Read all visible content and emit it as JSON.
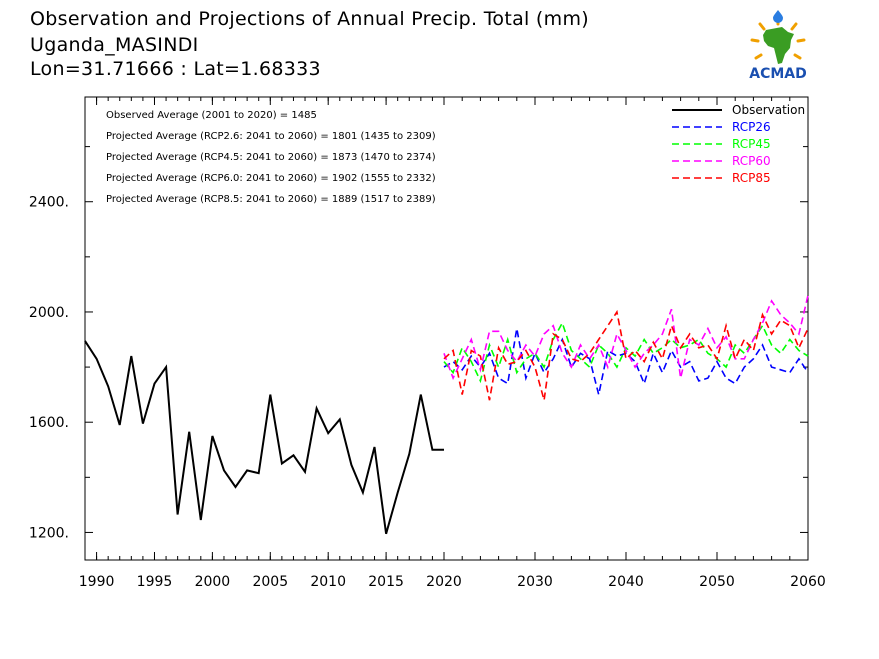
{
  "header": {
    "title": "Observation and Projections of Annual Precip. Total (mm)",
    "location": "Uganda_MASINDI",
    "coords": "Lon=31.71666 : Lat=1.68333"
  },
  "logo": {
    "text": "ACMAD",
    "colors": {
      "africa": "#3a9d23",
      "rays": "#f0a000",
      "text": "#1a4fb0"
    }
  },
  "annotations": [
    "Observed Average (2001 to 2020) = 1485",
    "Projected Average (RCP2.6: 2041 to 2060) = 1801 (1435 to 2309)",
    "Projected Average (RCP4.5: 2041 to 2060) = 1873 (1470 to 2374)",
    "Projected Average (RCP6.0: 2041 to 2060) = 1902 (1555 to 2332)",
    "Projected Average (RCP8.5: 2041 to 2060) = 1889 (1517 to 2389)"
  ],
  "chart_data": {
    "type": "line",
    "xlim": [
      1989,
      2060
    ],
    "ylim": [
      1100,
      2780
    ],
    "x_ticks": [
      "1990",
      "1995",
      "2000",
      "2005",
      "2010",
      "2015",
      "2020",
      "2030",
      "2040",
      "2050",
      "2060"
    ],
    "y_ticks": [
      "1200.",
      "1600.",
      "2000.",
      "2400."
    ],
    "legend_position": "top-right",
    "series": [
      {
        "name": "Observation",
        "color": "#000000",
        "dashed": false,
        "x": [
          1989,
          1990,
          1991,
          1992,
          1993,
          1994,
          1995,
          1996,
          1997,
          1998,
          1999,
          2000,
          2001,
          2002,
          2003,
          2004,
          2005,
          2006,
          2007,
          2008,
          2009,
          2010,
          2011,
          2012,
          2013,
          2014,
          2015,
          2016,
          2017,
          2018,
          2019,
          2020
        ],
        "y": [
          1895,
          1830,
          1730,
          1590,
          1840,
          1595,
          1740,
          1800,
          1265,
          1565,
          1245,
          1550,
          1425,
          1365,
          1425,
          1415,
          1700,
          1450,
          1480,
          1420,
          1650,
          1560,
          1610,
          1445,
          1345,
          1510,
          1195,
          1345,
          1485,
          1700,
          1500,
          1500
        ]
      },
      {
        "name": "RCP26",
        "color": "#0000ff",
        "dashed": true,
        "x": [
          2020,
          2021,
          2022,
          2023,
          2024,
          2025,
          2026,
          2027,
          2028,
          2029,
          2030,
          2031,
          2032,
          2033,
          2034,
          2035,
          2036,
          2037,
          2038,
          2039,
          2040,
          2041,
          2042,
          2043,
          2044,
          2045,
          2046,
          2047,
          2048,
          2049,
          2050,
          2051,
          2052,
          2053,
          2054,
          2055,
          2056,
          2057,
          2058,
          2059,
          2060
        ],
        "y": [
          1800,
          1820,
          1790,
          1840,
          1800,
          1850,
          1760,
          1740,
          1940,
          1760,
          1850,
          1780,
          1830,
          1900,
          1800,
          1850,
          1830,
          1700,
          1860,
          1840,
          1850,
          1820,
          1740,
          1850,
          1780,
          1860,
          1800,
          1820,
          1750,
          1760,
          1820,
          1760,
          1740,
          1800,
          1830,
          1880,
          1800,
          1790,
          1780,
          1830,
          1780
        ]
      },
      {
        "name": "RCP45",
        "color": "#00ff00",
        "dashed": true,
        "x": [
          2020,
          2021,
          2022,
          2023,
          2024,
          2025,
          2026,
          2027,
          2028,
          2029,
          2030,
          2031,
          2032,
          2033,
          2034,
          2035,
          2036,
          2037,
          2038,
          2039,
          2040,
          2041,
          2042,
          2043,
          2044,
          2045,
          2046,
          2047,
          2048,
          2049,
          2050,
          2051,
          2052,
          2053,
          2054,
          2055,
          2056,
          2057,
          2058,
          2059,
          2060
        ],
        "y": [
          1820,
          1780,
          1870,
          1820,
          1750,
          1880,
          1800,
          1900,
          1780,
          1830,
          1850,
          1800,
          1900,
          1960,
          1860,
          1830,
          1800,
          1880,
          1850,
          1800,
          1870,
          1840,
          1900,
          1850,
          1870,
          1900,
          1870,
          1880,
          1900,
          1850,
          1830,
          1800,
          1880,
          1850,
          1900,
          1950,
          1880,
          1850,
          1900,
          1860,
          1840
        ]
      },
      {
        "name": "RCP60",
        "color": "#ff00ff",
        "dashed": true,
        "x": [
          2020,
          2021,
          2022,
          2023,
          2024,
          2025,
          2026,
          2027,
          2028,
          2029,
          2030,
          2031,
          2032,
          2033,
          2034,
          2035,
          2036,
          2037,
          2038,
          2039,
          2040,
          2041,
          2042,
          2043,
          2044,
          2045,
          2046,
          2047,
          2048,
          2049,
          2050,
          2051,
          2052,
          2053,
          2054,
          2055,
          2056,
          2057,
          2058,
          2059,
          2060
        ],
        "y": [
          1850,
          1760,
          1830,
          1900,
          1790,
          1930,
          1930,
          1860,
          1820,
          1880,
          1840,
          1920,
          1950,
          1850,
          1800,
          1880,
          1830,
          1880,
          1800,
          1920,
          1860,
          1800,
          1850,
          1880,
          1920,
          2010,
          1760,
          1900,
          1880,
          1940,
          1870,
          1910,
          1830,
          1830,
          1900,
          1960,
          2040,
          1990,
          1960,
          1920,
          2060
        ]
      },
      {
        "name": "RCP85",
        "color": "#ff0000",
        "dashed": true,
        "x": [
          2020,
          2021,
          2022,
          2023,
          2024,
          2025,
          2026,
          2027,
          2028,
          2029,
          2030,
          2031,
          2032,
          2033,
          2034,
          2035,
          2036,
          2037,
          2038,
          2039,
          2040,
          2041,
          2042,
          2043,
          2044,
          2045,
          2046,
          2047,
          2048,
          2049,
          2050,
          2051,
          2052,
          2053,
          2054,
          2055,
          2056,
          2057,
          2058,
          2059,
          2060
        ],
        "y": [
          1830,
          1860,
          1700,
          1860,
          1840,
          1680,
          1870,
          1810,
          1820,
          1860,
          1800,
          1680,
          1920,
          1900,
          1830,
          1820,
          1850,
          1900,
          1950,
          2000,
          1830,
          1860,
          1820,
          1890,
          1830,
          1950,
          1870,
          1920,
          1870,
          1880,
          1830,
          1950,
          1830,
          1900,
          1860,
          1990,
          1920,
          1970,
          1950,
          1870,
          1940
        ]
      }
    ]
  }
}
